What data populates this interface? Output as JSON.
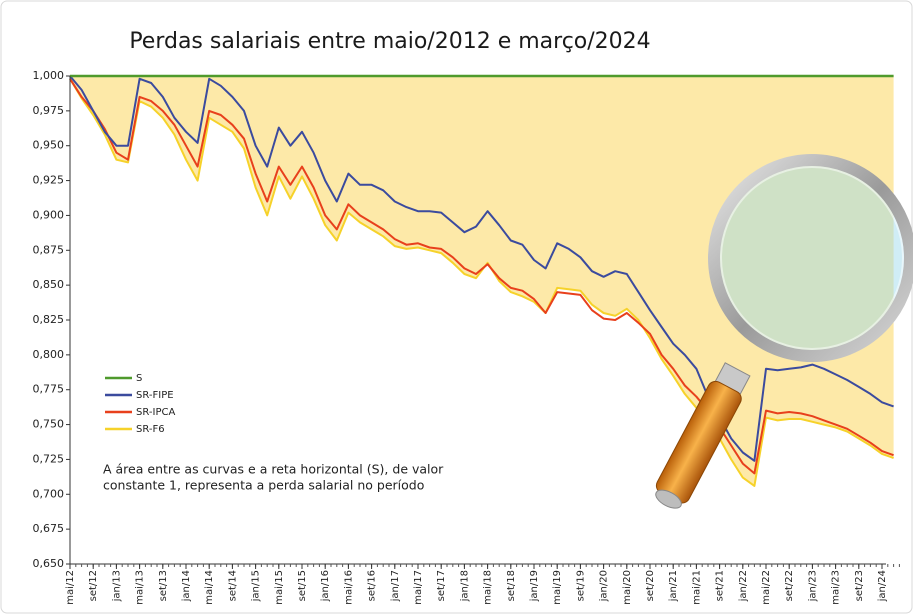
{
  "chart_data": {
    "type": "line",
    "title": "Perdas salariais entre maio/2012 e março/2024",
    "annotation": [
      "A área entre as curvas e a reta horizontal (S), de valor",
      "constante 1, representa a perda salarial no período"
    ],
    "categories": [
      "mai/12",
      null,
      "set/12",
      null,
      "jan/13",
      null,
      "mai/13",
      null,
      "set/13",
      null,
      "jan/14",
      null,
      "mai/14",
      null,
      "set/14",
      null,
      "jan/15",
      null,
      "mai/15",
      null,
      "set/15",
      null,
      "jan/16",
      null,
      "mai/16",
      null,
      "set/16",
      null,
      "jan/17",
      null,
      "mai/17",
      null,
      "set/17",
      null,
      "jan/18",
      null,
      "mai/18",
      null,
      "set/18",
      null,
      "jan/19",
      null,
      "mai/19",
      null,
      "set/19",
      null,
      "jan/20",
      null,
      "mai/20",
      null,
      "set/20",
      null,
      "jan/21",
      null,
      "mai/21",
      null,
      "set/21",
      null,
      "jan/22",
      null,
      "mai/22",
      null,
      "set/22",
      null,
      "jan/23",
      null,
      "mai/23",
      null,
      "set/23",
      null,
      "jan/24",
      null
    ],
    "series": [
      {
        "name": "S",
        "color": "#4f9a2c",
        "values": [
          1,
          1,
          1,
          1,
          1,
          1,
          1,
          1,
          1,
          1,
          1,
          1,
          1,
          1,
          1,
          1,
          1,
          1,
          1,
          1,
          1,
          1,
          1,
          1,
          1,
          1,
          1,
          1,
          1,
          1,
          1,
          1,
          1,
          1,
          1,
          1,
          1,
          1,
          1,
          1,
          1,
          1,
          1,
          1,
          1,
          1,
          1,
          1,
          1,
          1,
          1,
          1,
          1,
          1,
          1,
          1,
          1,
          1,
          1,
          1,
          1,
          1,
          1,
          1,
          1,
          1,
          1,
          1,
          1,
          1,
          1,
          1
        ]
      },
      {
        "name": "SR-FIPE",
        "color": "#3b4b9e",
        "values": [
          1.0,
          0.99,
          0.975,
          0.96,
          0.95,
          0.95,
          0.998,
          0.995,
          0.985,
          0.97,
          0.96,
          0.952,
          0.998,
          0.993,
          0.985,
          0.975,
          0.95,
          0.935,
          0.963,
          0.95,
          0.96,
          0.945,
          0.925,
          0.91,
          0.93,
          0.922,
          0.922,
          0.918,
          0.91,
          0.906,
          0.903,
          0.903,
          0.902,
          0.895,
          0.888,
          0.892,
          0.903,
          0.893,
          0.882,
          0.879,
          0.868,
          0.862,
          0.88,
          0.876,
          0.87,
          0.86,
          0.856,
          0.86,
          0.858,
          0.845,
          0.832,
          0.82,
          0.808,
          0.8,
          0.79,
          0.77,
          0.755,
          0.74,
          0.73,
          0.724,
          0.79,
          0.789,
          0.79,
          0.791,
          0.793,
          0.79,
          0.786,
          0.782,
          0.777,
          0.772,
          0.766,
          0.763
        ]
      },
      {
        "name": "SR-IPCA",
        "color": "#e8401c",
        "values": [
          0.998,
          0.985,
          0.975,
          0.962,
          0.945,
          0.94,
          0.985,
          0.982,
          0.975,
          0.965,
          0.95,
          0.935,
          0.975,
          0.972,
          0.965,
          0.955,
          0.93,
          0.91,
          0.935,
          0.922,
          0.935,
          0.92,
          0.9,
          0.89,
          0.908,
          0.9,
          0.895,
          0.89,
          0.883,
          0.879,
          0.88,
          0.877,
          0.876,
          0.87,
          0.862,
          0.858,
          0.865,
          0.855,
          0.848,
          0.846,
          0.84,
          0.83,
          0.845,
          0.844,
          0.843,
          0.832,
          0.826,
          0.825,
          0.83,
          0.823,
          0.815,
          0.8,
          0.79,
          0.778,
          0.77,
          0.76,
          0.748,
          0.735,
          0.722,
          0.715,
          0.76,
          0.758,
          0.759,
          0.758,
          0.756,
          0.753,
          0.75,
          0.747,
          0.742,
          0.737,
          0.731,
          0.728
        ]
      },
      {
        "name": "SR-F6",
        "color": "#f6d22a",
        "values": [
          0.998,
          0.984,
          0.972,
          0.958,
          0.94,
          0.938,
          0.982,
          0.978,
          0.97,
          0.958,
          0.94,
          0.925,
          0.97,
          0.965,
          0.96,
          0.948,
          0.92,
          0.9,
          0.928,
          0.912,
          0.928,
          0.912,
          0.893,
          0.882,
          0.902,
          0.895,
          0.89,
          0.885,
          0.878,
          0.876,
          0.877,
          0.875,
          0.873,
          0.866,
          0.858,
          0.855,
          0.866,
          0.853,
          0.845,
          0.842,
          0.838,
          0.83,
          0.848,
          0.847,
          0.846,
          0.836,
          0.83,
          0.828,
          0.833,
          0.825,
          0.812,
          0.797,
          0.785,
          0.772,
          0.762,
          0.752,
          0.74,
          0.725,
          0.712,
          0.706,
          0.755,
          0.753,
          0.754,
          0.754,
          0.752,
          0.75,
          0.748,
          0.745,
          0.74,
          0.735,
          0.729,
          0.726
        ]
      }
    ],
    "area_color": "#fde9a8",
    "ylim": [
      0.65,
      1.0
    ],
    "yticks": [
      {
        "value": 0.65,
        "label": "0,650"
      },
      {
        "value": 0.675,
        "label": "0,675"
      },
      {
        "value": 0.7,
        "label": "0,700"
      },
      {
        "value": 0.725,
        "label": "0,725"
      },
      {
        "value": 0.75,
        "label": "0,750"
      },
      {
        "value": 0.775,
        "label": "0,775"
      },
      {
        "value": 0.8,
        "label": "0,800"
      },
      {
        "value": 0.825,
        "label": "0,825"
      },
      {
        "value": 0.85,
        "label": "0,850"
      },
      {
        "value": 0.875,
        "label": "0,875"
      },
      {
        "value": 0.9,
        "label": "0,900"
      },
      {
        "value": 0.925,
        "label": "0,925"
      },
      {
        "value": 0.95,
        "label": "0,950"
      },
      {
        "value": 0.975,
        "label": "0,975"
      },
      {
        "value": 1.0,
        "label": "1,000"
      }
    ]
  }
}
